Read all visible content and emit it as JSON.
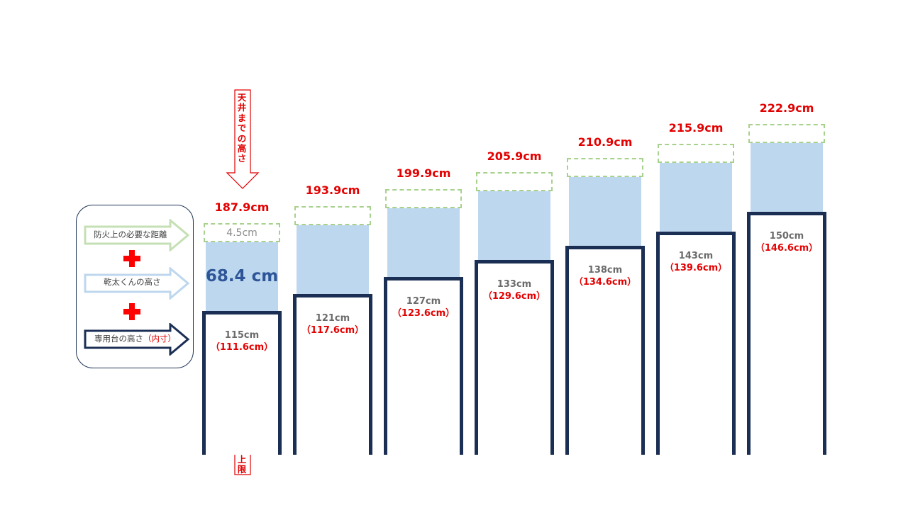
{
  "legend": {
    "items": [
      {
        "label": "防火上の必要な距離",
        "color": "#c5e0b4"
      },
      {
        "label": "乾太くんの高さ",
        "color": "#bdd7ee"
      },
      {
        "label": "専用台の高さ",
        "suffix": "（内寸）",
        "color": "#1b2f54"
      }
    ],
    "cross_color": "#ff0000"
  },
  "annotations": {
    "ceiling_height": "天井までの高さ",
    "washer_limit": "洗濯機の高さの上限"
  },
  "first_column": {
    "gap_label": "4.5cm",
    "dryer_label": "68.4 cm"
  },
  "columns": [
    {
      "total": "187.9cm",
      "stand": "115cm",
      "inner": "（111.6cm）"
    },
    {
      "total": "193.9cm",
      "stand": "121cm",
      "inner": "（117.6cm）"
    },
    {
      "total": "199.9cm",
      "stand": "127cm",
      "inner": "（123.6cm）"
    },
    {
      "total": "205.9cm",
      "stand": "133cm",
      "inner": "（129.6cm）"
    },
    {
      "total": "210.9cm",
      "stand": "138cm",
      "inner": "（134.6cm）"
    },
    {
      "total": "215.9cm",
      "stand": "143cm",
      "inner": "（139.6cm）"
    },
    {
      "total": "222.9cm",
      "stand": "150cm",
      "inner": "（146.6cm）"
    }
  ],
  "chart_data": {
    "type": "bar",
    "categories": [
      "187.9cm",
      "193.9cm",
      "199.9cm",
      "205.9cm",
      "210.9cm",
      "215.9cm",
      "222.9cm"
    ],
    "series": [
      {
        "name": "専用台の高さ",
        "values": [
          115,
          121,
          127,
          133,
          138,
          143,
          150
        ]
      },
      {
        "name": "乾太くんの高さ",
        "values": [
          68.4,
          68.4,
          68.4,
          68.4,
          68.4,
          68.4,
          68.4
        ]
      },
      {
        "name": "防火上の必要な距離",
        "values": [
          4.5,
          4.5,
          4.5,
          4.5,
          4.5,
          4.5,
          4.5
        ]
      }
    ],
    "inner_heights": [
      111.6,
      117.6,
      123.6,
      129.6,
      134.6,
      139.6,
      146.6
    ],
    "totals": [
      187.9,
      193.9,
      199.9,
      205.9,
      210.9,
      215.9,
      222.9
    ]
  }
}
